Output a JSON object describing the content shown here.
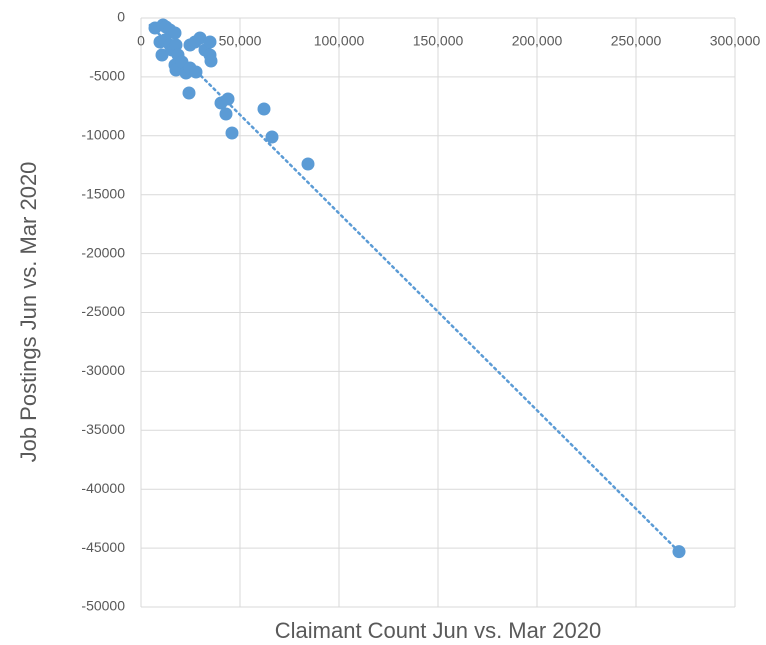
{
  "chart_data": {
    "type": "scatter",
    "x_label": "Claimant Count Jun vs. Mar 2020",
    "y_label": "Job Postings Jun vs. Mar 2020",
    "xlim": [
      0,
      300000
    ],
    "ylim": [
      -50000,
      0
    ],
    "xticks": [
      0,
      {
        "value": 50000,
        "label": "50,000"
      },
      {
        "value": 100000,
        "label": "100,000"
      },
      {
        "value": 150000,
        "label": "150,000"
      },
      {
        "value": 200000,
        "label": "200,000"
      },
      {
        "value": 250000,
        "label": "250,000"
      },
      {
        "value": 300000,
        "label": "300,000"
      }
    ],
    "yticks": [
      0,
      -5000,
      -10000,
      -15000,
      -20000,
      -25000,
      -30000,
      -35000,
      -40000,
      -45000,
      -50000
    ],
    "grid": true,
    "series": [
      {
        "color": "#5b9bd5",
        "x": [
          7071,
          11111,
          12626,
          14646,
          17172,
          9596,
          12121,
          14646,
          10606,
          15657,
          17677,
          18687,
          17172,
          17677,
          20707,
          22727,
          24747,
          27778,
          24747,
          27273,
          29798,
          32323,
          34848,
          34848,
          35354,
          24242,
          40404,
          43939,
          42929,
          45960,
          62121,
          66162,
          84343,
          271717
        ],
        "values": [
          -849,
          -594,
          -764,
          -1019,
          -1273,
          -2037,
          -1868,
          -2292,
          -3141,
          -2716,
          -2292,
          -3141,
          -3990,
          -4414,
          -3735,
          -4669,
          -4244,
          -4584,
          -2292,
          -2037,
          -1698,
          -2716,
          -2037,
          -3141,
          -3650,
          -6367,
          -7216,
          -6876,
          -8149,
          -9762,
          -7725,
          -10102,
          -12394,
          -45300
        ]
      }
    ],
    "trendline": {
      "color": "#5b9bd5",
      "x": [
        4500,
        271700
      ],
      "values": [
        -600,
        -45300
      ]
    }
  }
}
